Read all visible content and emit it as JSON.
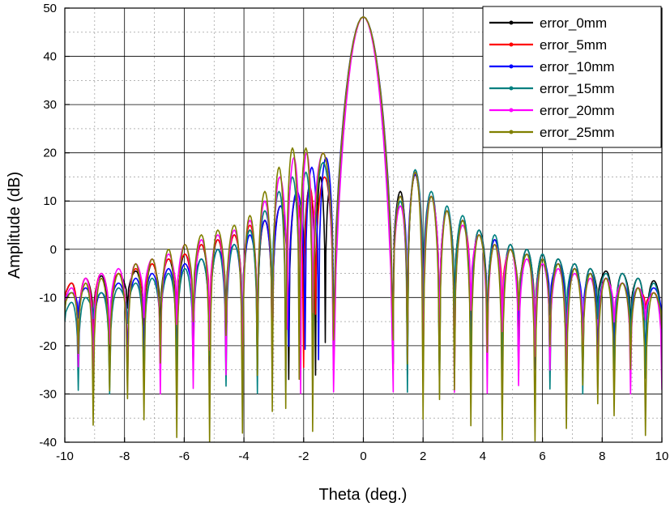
{
  "chart_data": {
    "type": "line",
    "title": "",
    "xlabel": "Theta (deg.)",
    "ylabel": "Amplitude (dB)",
    "xlim": [
      -10,
      10
    ],
    "ylim": [
      -40,
      50
    ],
    "xticks": [
      -10,
      -8,
      -6,
      -4,
      -2,
      0,
      2,
      4,
      6,
      8,
      10
    ],
    "yticks": [
      -40,
      -30,
      -20,
      -10,
      0,
      10,
      20,
      30,
      40,
      50
    ],
    "grid": true,
    "legend_position": "top-right",
    "main_lobe": {
      "peak_theta": 0,
      "peak_db": 48.2,
      "first_null_theta": 1.0
    },
    "series": [
      {
        "name": "error_0mm",
        "color": "#000000",
        "marker": "square",
        "sidelobe_peaks": [
          [
            -9.8,
            -7
          ],
          [
            -9.3,
            -6
          ],
          [
            -8.8,
            -5.5
          ],
          [
            -8.2,
            -5
          ],
          [
            -7.6,
            -4.5
          ],
          [
            -7.1,
            -3
          ],
          [
            -6.5,
            -2
          ],
          [
            -6.0,
            -1
          ],
          [
            -5.4,
            1
          ],
          [
            -4.9,
            2
          ],
          [
            -4.3,
            3
          ],
          [
            -3.8,
            4
          ],
          [
            -3.3,
            6
          ],
          [
            -2.8,
            9
          ],
          [
            -2.2,
            11
          ],
          [
            -1.8,
            13
          ],
          [
            -1.4,
            15
          ],
          [
            -1.15,
            12
          ],
          [
            1.25,
            12
          ],
          [
            1.7,
            15.5
          ],
          [
            2.3,
            11
          ],
          [
            2.8,
            8
          ],
          [
            3.3,
            6
          ],
          [
            3.9,
            4
          ],
          [
            4.4,
            2
          ],
          [
            4.9,
            1
          ],
          [
            5.5,
            0
          ],
          [
            6.0,
            -1
          ],
          [
            6.5,
            -2
          ],
          [
            7.1,
            -3
          ],
          [
            7.6,
            -4
          ],
          [
            8.1,
            -4.5
          ],
          [
            8.7,
            -5
          ],
          [
            9.2,
            -6
          ],
          [
            9.7,
            -6.5
          ]
        ],
        "null_min_db": -27
      },
      {
        "name": "error_5mm",
        "color": "#ff0000",
        "marker": "circle",
        "sidelobe_peaks": [
          [
            -9.8,
            -7
          ],
          [
            -9.3,
            -6
          ],
          [
            -8.8,
            -5
          ],
          [
            -8.2,
            -5
          ],
          [
            -7.6,
            -4
          ],
          [
            -7.1,
            -3
          ],
          [
            -6.5,
            -2
          ],
          [
            -6.0,
            -1
          ],
          [
            -5.4,
            1
          ],
          [
            -4.9,
            2
          ],
          [
            -4.3,
            3
          ],
          [
            -3.8,
            5
          ],
          [
            -3.3,
            6
          ],
          [
            -2.8,
            9
          ],
          [
            -2.2,
            11
          ],
          [
            -1.8,
            13
          ],
          [
            -1.4,
            15
          ],
          [
            1.25,
            11
          ],
          [
            1.7,
            15.5
          ],
          [
            2.3,
            11
          ],
          [
            2.8,
            8
          ],
          [
            3.3,
            6
          ],
          [
            3.9,
            3
          ],
          [
            4.4,
            2
          ],
          [
            4.9,
            0
          ],
          [
            5.5,
            -1
          ],
          [
            6.0,
            -2
          ],
          [
            6.5,
            -3
          ],
          [
            7.1,
            -4
          ],
          [
            7.6,
            -5
          ],
          [
            8.1,
            -6
          ],
          [
            8.7,
            -7
          ],
          [
            9.2,
            -8
          ],
          [
            9.7,
            -9
          ]
        ],
        "null_min_db": -25
      },
      {
        "name": "error_10mm",
        "color": "#0000ff",
        "marker": "triangle",
        "sidelobe_peaks": [
          [
            -9.8,
            -9
          ],
          [
            -9.3,
            -8
          ],
          [
            -8.8,
            -9
          ],
          [
            -8.2,
            -7
          ],
          [
            -7.6,
            -6
          ],
          [
            -7.1,
            -5
          ],
          [
            -6.5,
            -4
          ],
          [
            -6.0,
            -3
          ],
          [
            -5.4,
            -2
          ],
          [
            -4.9,
            0
          ],
          [
            -4.3,
            1
          ],
          [
            -3.8,
            3
          ],
          [
            -3.3,
            6
          ],
          [
            -2.8,
            9
          ],
          [
            -2.2,
            12
          ],
          [
            -1.7,
            17
          ],
          [
            -1.3,
            19
          ],
          [
            1.25,
            11
          ],
          [
            1.7,
            15.5
          ],
          [
            2.3,
            11
          ],
          [
            2.8,
            8
          ],
          [
            3.3,
            6
          ],
          [
            3.9,
            3
          ],
          [
            4.4,
            2
          ],
          [
            4.9,
            0
          ],
          [
            5.5,
            -1
          ],
          [
            6.0,
            -2
          ],
          [
            6.5,
            -3
          ],
          [
            7.1,
            -4
          ],
          [
            7.6,
            -5
          ],
          [
            8.1,
            -6
          ],
          [
            8.7,
            -7
          ],
          [
            9.2,
            -8
          ],
          [
            9.7,
            -8
          ]
        ],
        "null_min_db": -25
      },
      {
        "name": "error_15mm",
        "color": "#008080",
        "marker": "triangle-down",
        "sidelobe_peaks": [
          [
            -9.8,
            -11
          ],
          [
            -9.3,
            -10
          ],
          [
            -8.8,
            -9
          ],
          [
            -8.2,
            -8
          ],
          [
            -7.6,
            -7
          ],
          [
            -7.1,
            -6
          ],
          [
            -6.5,
            -5
          ],
          [
            -6.0,
            -4
          ],
          [
            -5.4,
            -2
          ],
          [
            -4.9,
            0
          ],
          [
            -4.3,
            1
          ],
          [
            -3.8,
            4
          ],
          [
            -3.3,
            8
          ],
          [
            -2.8,
            12
          ],
          [
            -2.4,
            15
          ],
          [
            -1.9,
            16
          ],
          [
            -1.5,
            18
          ],
          [
            1.25,
            10
          ],
          [
            1.7,
            16.5
          ],
          [
            2.3,
            12
          ],
          [
            2.8,
            9
          ],
          [
            3.3,
            7
          ],
          [
            3.9,
            4
          ],
          [
            4.4,
            3
          ],
          [
            4.9,
            1
          ],
          [
            5.5,
            0
          ],
          [
            6.0,
            -1
          ],
          [
            6.5,
            -2
          ],
          [
            7.1,
            -3
          ],
          [
            7.6,
            -4
          ],
          [
            8.1,
            -5
          ],
          [
            8.7,
            -5
          ],
          [
            9.2,
            -6
          ],
          [
            9.7,
            -7
          ]
        ],
        "null_min_db": -30
      },
      {
        "name": "error_20mm",
        "color": "#ff00ff",
        "marker": "diamond",
        "sidelobe_peaks": [
          [
            -9.8,
            -8
          ],
          [
            -9.3,
            -6
          ],
          [
            -8.8,
            -5
          ],
          [
            -8.2,
            -4
          ],
          [
            -7.6,
            -3
          ],
          [
            -7.1,
            -2
          ],
          [
            -6.5,
            -1
          ],
          [
            -6.0,
            1
          ],
          [
            -5.4,
            2
          ],
          [
            -4.9,
            3
          ],
          [
            -4.3,
            4
          ],
          [
            -3.8,
            6
          ],
          [
            -3.3,
            10
          ],
          [
            -2.8,
            15
          ],
          [
            -2.3,
            19
          ],
          [
            -1.9,
            20
          ],
          [
            -1.5,
            20
          ],
          [
            1.25,
            9
          ],
          [
            1.7,
            16
          ],
          [
            2.3,
            11
          ],
          [
            2.8,
            8
          ],
          [
            3.3,
            5
          ],
          [
            3.9,
            3
          ],
          [
            4.4,
            1
          ],
          [
            4.9,
            0
          ],
          [
            5.5,
            -2
          ],
          [
            6.0,
            -3
          ],
          [
            6.5,
            -4
          ],
          [
            7.1,
            -5
          ],
          [
            7.6,
            -6
          ],
          [
            8.1,
            -6
          ],
          [
            8.7,
            -7
          ],
          [
            9.2,
            -8
          ],
          [
            9.7,
            -9
          ]
        ],
        "null_min_db": -30
      },
      {
        "name": "error_25mm",
        "color": "#808000",
        "marker": "hexagon",
        "sidelobe_peaks": [
          [
            -9.8,
            -9
          ],
          [
            -9.3,
            -7
          ],
          [
            -8.8,
            -6
          ],
          [
            -8.2,
            -5
          ],
          [
            -7.6,
            -3
          ],
          [
            -7.1,
            -2
          ],
          [
            -6.5,
            0
          ],
          [
            -6.0,
            1
          ],
          [
            -5.4,
            3
          ],
          [
            -4.9,
            4
          ],
          [
            -4.3,
            5
          ],
          [
            -3.8,
            7
          ],
          [
            -3.3,
            12
          ],
          [
            -2.8,
            17
          ],
          [
            -2.4,
            21
          ],
          [
            -1.9,
            21
          ],
          [
            -1.5,
            20
          ],
          [
            1.25,
            11
          ],
          [
            1.7,
            16
          ],
          [
            2.3,
            11
          ],
          [
            2.8,
            8
          ],
          [
            3.3,
            6
          ],
          [
            3.9,
            3
          ],
          [
            4.4,
            1
          ],
          [
            4.9,
            0
          ],
          [
            5.5,
            -1
          ],
          [
            6.0,
            -2
          ],
          [
            6.5,
            -3
          ],
          [
            7.1,
            -4
          ],
          [
            7.6,
            -5
          ],
          [
            8.1,
            -6
          ],
          [
            8.7,
            -7
          ],
          [
            9.2,
            -8
          ],
          [
            9.7,
            -9
          ]
        ],
        "null_min_db": -40
      }
    ]
  }
}
